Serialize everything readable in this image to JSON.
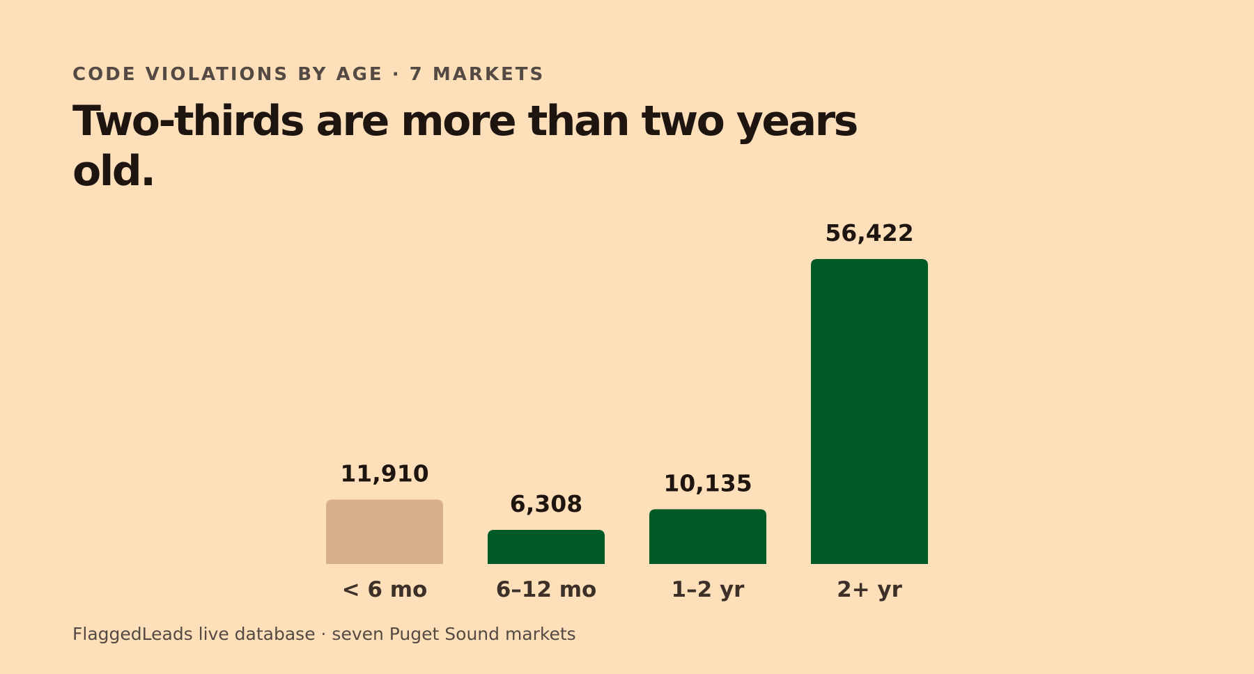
{
  "eyebrow": "CODE VIOLATIONS BY AGE · 7 MARKETS",
  "headline": "Two-thirds are more than two years old.",
  "footer": "FlaggedLeads live database · seven Puget Sound markets",
  "colors": {
    "background": "#fddfba",
    "highlight": "#005a27",
    "muted": "#d6b088",
    "text": "#1e1511",
    "secondary_text": "#544a43"
  },
  "chart_data": {
    "type": "bar",
    "categories": [
      "< 6 mo",
      "6–12 mo",
      "1–2 yr",
      "2+ yr"
    ],
    "values": [
      11910,
      6308,
      10135,
      56422
    ],
    "value_labels": [
      "11,910",
      "6,308",
      "10,135",
      "56,422"
    ],
    "bar_colors": [
      "#d6b088",
      "#005a27",
      "#005a27",
      "#005a27"
    ],
    "ylim": [
      0,
      56422
    ],
    "grid": false,
    "legend": "none"
  }
}
